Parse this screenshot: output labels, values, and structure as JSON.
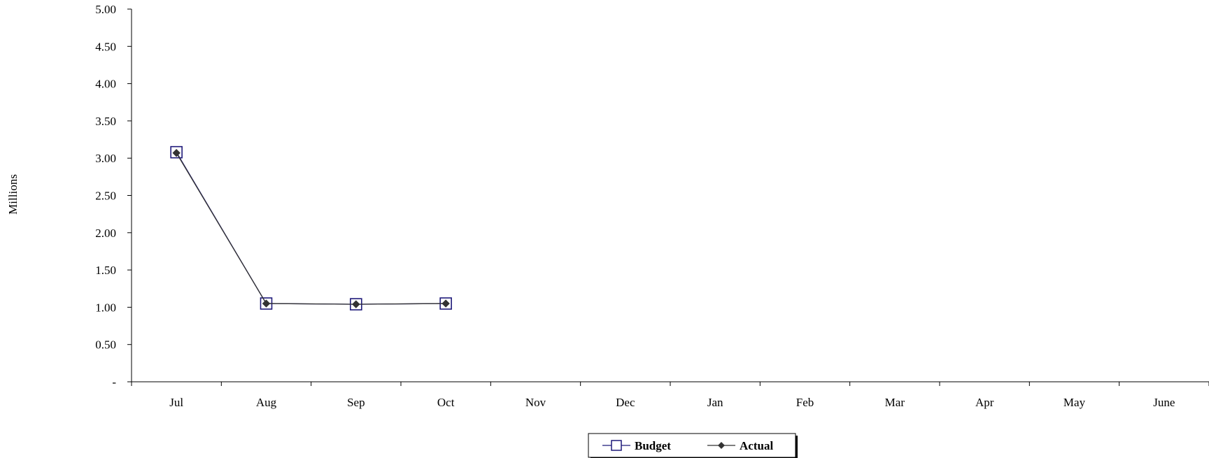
{
  "chart_data": {
    "type": "line",
    "title": "",
    "xlabel": "",
    "ylabel": "Millions",
    "categories": [
      "Jul",
      "Aug",
      "Sep",
      "Oct",
      "Nov",
      "Dec",
      "Jan",
      "Feb",
      "Mar",
      "Apr",
      "May",
      "June"
    ],
    "y_tick_labels": [
      "-",
      "0.50",
      "1.00",
      "1.50",
      "2.00",
      "2.50",
      "3.00",
      "3.50",
      "4.00",
      "4.50",
      "5.00"
    ],
    "ylim": [
      0,
      5
    ],
    "grid": false,
    "legend_position": "bottom-center",
    "series": [
      {
        "name": "Budget",
        "marker": "open-square",
        "color": "#1f1a7a",
        "values": [
          3.08,
          1.05,
          1.04,
          1.05,
          null,
          null,
          null,
          null,
          null,
          null,
          null,
          null
        ]
      },
      {
        "name": "Actual",
        "marker": "filled-diamond",
        "color": "#333333",
        "values": [
          3.07,
          1.05,
          1.04,
          1.05,
          null,
          null,
          null,
          null,
          null,
          null,
          null,
          null
        ]
      }
    ]
  }
}
